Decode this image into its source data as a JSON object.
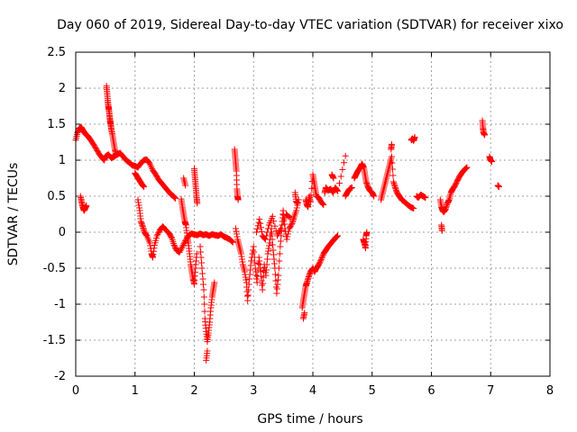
{
  "chart_data": {
    "type": "scatter",
    "title": "Day 060 of 2019, Sidereal Day-to-day VTEC variation (SDTVAR) for receiver xixo",
    "xlabel": "GPS time / hours",
    "ylabel": "SDTVAR / TECUs",
    "xlim": [
      0,
      8
    ],
    "ylim": [
      -2,
      2.5
    ],
    "xticks": [
      "0",
      "1",
      "2",
      "3",
      "4",
      "5",
      "6",
      "7",
      "8"
    ],
    "yticks": [
      "2.5",
      "2",
      "1.5",
      "1",
      "0.5",
      "0",
      "-0.5",
      "-1",
      "-1.5",
      "-2"
    ],
    "marker": "+",
    "color": "#ff0000",
    "grid": true,
    "segments": [
      [
        [
          0.0,
          1.28
        ],
        [
          0.03,
          1.38
        ],
        [
          0.06,
          1.44
        ],
        [
          0.09,
          1.46
        ],
        [
          0.12,
          1.42
        ],
        [
          0.15,
          1.38
        ],
        [
          0.18,
          1.35
        ],
        [
          0.21,
          1.33
        ],
        [
          0.25,
          1.28
        ],
        [
          0.3,
          1.22
        ],
        [
          0.35,
          1.15
        ],
        [
          0.4,
          1.08
        ],
        [
          0.45,
          1.03
        ],
        [
          0.48,
          1.0
        ],
        [
          0.5,
          1.05
        ],
        [
          0.55,
          1.08
        ],
        [
          0.6,
          1.03
        ],
        [
          0.65,
          1.05
        ],
        [
          0.7,
          1.08
        ],
        [
          0.75,
          1.1
        ],
        [
          0.8,
          1.05
        ],
        [
          0.85,
          1.0
        ],
        [
          0.9,
          0.97
        ],
        [
          0.95,
          0.93
        ],
        [
          1.0,
          0.92
        ],
        [
          1.05,
          0.9
        ],
        [
          1.1,
          0.96
        ],
        [
          1.15,
          1.0
        ],
        [
          1.2,
          1.01
        ],
        [
          1.25,
          0.95
        ],
        [
          1.3,
          0.86
        ],
        [
          1.35,
          0.8
        ],
        [
          1.4,
          0.73
        ],
        [
          1.45,
          0.68
        ],
        [
          1.5,
          0.63
        ],
        [
          1.55,
          0.58
        ],
        [
          1.6,
          0.53
        ],
        [
          1.65,
          0.5
        ],
        [
          1.68,
          0.47
        ]
      ],
      [
        [
          0.52,
          2.03
        ],
        [
          0.53,
          1.93
        ],
        [
          0.54,
          1.83
        ],
        [
          0.55,
          1.75
        ],
        [
          0.56,
          1.7
        ],
        [
          0.57,
          1.62
        ],
        [
          0.58,
          1.55
        ],
        [
          0.59,
          1.5
        ],
        [
          0.6,
          1.43
        ],
        [
          0.62,
          1.35
        ],
        [
          0.64,
          1.25
        ],
        [
          0.66,
          1.15
        ],
        [
          0.68,
          1.08
        ]
      ],
      [
        [
          1.0,
          0.82
        ],
        [
          1.03,
          0.78
        ],
        [
          1.06,
          0.74
        ],
        [
          1.09,
          0.7
        ],
        [
          1.12,
          0.66
        ],
        [
          1.15,
          0.63
        ]
      ],
      [
        [
          0.08,
          0.5
        ],
        [
          0.1,
          0.42
        ],
        [
          0.12,
          0.35
        ],
        [
          0.14,
          0.3
        ],
        [
          0.16,
          0.33
        ],
        [
          0.18,
          0.37
        ]
      ],
      [
        [
          1.05,
          0.45
        ],
        [
          1.08,
          0.3
        ],
        [
          1.1,
          0.15
        ],
        [
          1.13,
          0.08
        ],
        [
          1.16,
          0.0
        ],
        [
          1.2,
          -0.05
        ],
        [
          1.25,
          -0.15
        ],
        [
          1.28,
          -0.3
        ],
        [
          1.3,
          -0.35
        ],
        [
          1.33,
          -0.18
        ],
        [
          1.37,
          -0.05
        ],
        [
          1.42,
          0.03
        ],
        [
          1.47,
          0.08
        ],
        [
          1.52,
          0.03
        ],
        [
          1.58,
          -0.02
        ],
        [
          1.62,
          -0.08
        ],
        [
          1.66,
          -0.18
        ],
        [
          1.7,
          -0.25
        ],
        [
          1.75,
          -0.28
        ],
        [
          1.8,
          -0.2
        ],
        [
          1.85,
          -0.12
        ],
        [
          1.9,
          -0.05
        ],
        [
          1.95,
          -0.02
        ],
        [
          2.0,
          -0.03
        ],
        [
          2.05,
          -0.04
        ],
        [
          2.1,
          -0.02
        ],
        [
          2.15,
          -0.04
        ],
        [
          2.2,
          -0.03
        ],
        [
          2.25,
          -0.05
        ],
        [
          2.3,
          -0.03
        ],
        [
          2.35,
          -0.04
        ],
        [
          2.4,
          -0.05
        ],
        [
          2.45,
          -0.03
        ],
        [
          2.5,
          -0.06
        ],
        [
          2.55,
          -0.08
        ],
        [
          2.6,
          -0.1
        ],
        [
          2.65,
          -0.14
        ]
      ],
      [
        [
          1.78,
          0.46
        ],
        [
          1.8,
          0.35
        ],
        [
          1.82,
          0.25
        ],
        [
          1.84,
          0.15
        ],
        [
          1.86,
          0.1
        ],
        [
          1.88,
          -0.05
        ],
        [
          1.9,
          -0.15
        ],
        [
          1.92,
          -0.3
        ],
        [
          1.94,
          -0.45
        ],
        [
          1.96,
          -0.55
        ],
        [
          1.98,
          -0.65
        ],
        [
          2.0,
          -0.72
        ],
        [
          2.02,
          -0.5
        ],
        [
          2.04,
          -0.3
        ]
      ],
      [
        [
          1.82,
          0.75
        ],
        [
          1.85,
          0.65
        ]
      ],
      [
        [
          2.0,
          0.88
        ],
        [
          2.01,
          0.78
        ],
        [
          2.02,
          0.68
        ],
        [
          2.03,
          0.58
        ],
        [
          2.04,
          0.48
        ],
        [
          2.05,
          0.4
        ]
      ],
      [
        [
          2.1,
          -0.2
        ],
        [
          2.13,
          -0.5
        ],
        [
          2.16,
          -0.8
        ],
        [
          2.18,
          -1.2
        ],
        [
          2.2,
          -1.38
        ],
        [
          2.22,
          -1.52
        ],
        [
          2.24,
          -1.4
        ],
        [
          2.26,
          -1.25
        ],
        [
          2.28,
          -1.05
        ],
        [
          2.3,
          -0.9
        ],
        [
          2.32,
          -0.8
        ],
        [
          2.34,
          -0.7
        ]
      ],
      [
        [
          2.2,
          -1.78
        ],
        [
          2.22,
          -1.65
        ]
      ],
      [
        [
          2.68,
          1.15
        ],
        [
          2.69,
          1.05
        ],
        [
          2.7,
          0.95
        ],
        [
          2.71,
          0.85
        ],
        [
          2.72,
          0.6
        ],
        [
          2.73,
          0.5
        ],
        [
          2.74,
          0.45
        ]
      ],
      [
        [
          2.7,
          0.05
        ],
        [
          2.73,
          -0.1
        ],
        [
          2.76,
          -0.2
        ],
        [
          2.79,
          -0.3
        ],
        [
          2.82,
          -0.45
        ],
        [
          2.85,
          -0.55
        ],
        [
          2.88,
          -0.7
        ],
        [
          2.9,
          -0.95
        ],
        [
          2.93,
          -0.65
        ],
        [
          2.96,
          -0.4
        ],
        [
          3.0,
          -0.2
        ],
        [
          3.03,
          -0.5
        ],
        [
          3.06,
          -0.7
        ],
        [
          3.09,
          -0.35
        ],
        [
          3.12,
          -0.55
        ],
        [
          3.15,
          -0.8
        ],
        [
          3.18,
          -0.45
        ],
        [
          3.21,
          -0.6
        ],
        [
          3.24,
          -0.3
        ],
        [
          3.27,
          -0.15
        ],
        [
          3.3,
          0.05
        ],
        [
          3.33,
          -0.25
        ],
        [
          3.36,
          -0.5
        ],
        [
          3.39,
          -0.85
        ],
        [
          3.42,
          -0.6
        ],
        [
          3.45,
          -0.2
        ],
        [
          3.48,
          0.1
        ],
        [
          3.5,
          0.3
        ],
        [
          3.53,
          0.05
        ],
        [
          3.56,
          -0.1
        ],
        [
          3.6,
          0.05
        ],
        [
          3.65,
          0.12
        ],
        [
          3.68,
          0.2
        ],
        [
          3.72,
          0.3
        ],
        [
          3.76,
          0.45
        ]
      ],
      [
        [
          3.05,
          0.0
        ],
        [
          3.1,
          0.18
        ],
        [
          3.15,
          -0.05
        ],
        [
          3.2,
          -0.1
        ],
        [
          3.26,
          0.1
        ],
        [
          3.32,
          0.22
        ],
        [
          3.4,
          -0.05
        ],
        [
          3.46,
          0.05
        ],
        [
          3.55,
          0.25
        ],
        [
          3.62,
          0.2
        ]
      ],
      [
        [
          3.7,
          0.55
        ],
        [
          3.72,
          0.43
        ],
        [
          3.74,
          0.4
        ]
      ],
      [
        [
          3.82,
          -1.05
        ],
        [
          3.84,
          -0.95
        ],
        [
          3.86,
          -0.85
        ],
        [
          3.88,
          -0.75
        ],
        [
          3.9,
          -0.7
        ],
        [
          3.93,
          -0.62
        ],
        [
          3.96,
          -0.55
        ],
        [
          4.0,
          -0.5
        ],
        [
          4.03,
          -0.55
        ],
        [
          4.06,
          -0.5
        ],
        [
          4.1,
          -0.45
        ],
        [
          4.14,
          -0.38
        ],
        [
          4.18,
          -0.3
        ],
        [
          4.22,
          -0.25
        ],
        [
          4.26,
          -0.2
        ],
        [
          4.3,
          -0.16
        ],
        [
          4.34,
          -0.12
        ],
        [
          4.38,
          -0.08
        ],
        [
          4.42,
          -0.05
        ]
      ],
      [
        [
          3.84,
          -1.2
        ],
        [
          3.86,
          -1.12
        ]
      ],
      [
        [
          3.88,
          0.45
        ],
        [
          3.9,
          0.38
        ],
        [
          3.92,
          0.35
        ],
        [
          3.94,
          0.5
        ],
        [
          3.96,
          0.42
        ],
        [
          4.0,
          0.8
        ],
        [
          4.02,
          0.7
        ],
        [
          4.04,
          0.6
        ],
        [
          4.06,
          0.5
        ],
        [
          4.1,
          0.48
        ],
        [
          4.14,
          0.42
        ],
        [
          4.18,
          0.38
        ]
      ],
      [
        [
          4.2,
          0.55
        ],
        [
          4.22,
          0.62
        ],
        [
          4.26,
          0.58
        ],
        [
          4.3,
          0.6
        ],
        [
          4.34,
          0.55
        ],
        [
          4.38,
          0.62
        ],
        [
          4.42,
          0.57
        ]
      ],
      [
        [
          4.32,
          0.8
        ],
        [
          4.35,
          0.75
        ]
      ],
      [
        [
          4.45,
          0.68
        ],
        [
          4.55,
          1.06
        ]
      ],
      [
        [
          4.55,
          0.5
        ],
        [
          4.58,
          0.55
        ],
        [
          4.62,
          0.6
        ],
        [
          4.66,
          0.62
        ]
      ],
      [
        [
          4.7,
          0.75
        ],
        [
          4.73,
          0.8
        ],
        [
          4.76,
          0.85
        ],
        [
          4.8,
          0.9
        ],
        [
          4.83,
          0.95
        ],
        [
          4.86,
          0.9
        ],
        [
          4.88,
          0.8
        ],
        [
          4.9,
          0.7
        ],
        [
          4.93,
          0.63
        ],
        [
          4.96,
          0.58
        ],
        [
          5.0,
          0.55
        ],
        [
          5.03,
          0.5
        ]
      ],
      [
        [
          4.85,
          -0.1
        ],
        [
          4.87,
          -0.15
        ],
        [
          4.89,
          -0.22
        ],
        [
          4.9,
          -0.05
        ],
        [
          4.91,
          0.0
        ]
      ],
      [
        [
          5.15,
          0.45
        ],
        [
          5.18,
          0.55
        ],
        [
          5.21,
          0.65
        ],
        [
          5.24,
          0.75
        ],
        [
          5.27,
          0.85
        ],
        [
          5.3,
          0.95
        ],
        [
          5.33,
          1.05
        ],
        [
          5.36,
          0.7
        ],
        [
          5.39,
          0.62
        ],
        [
          5.42,
          0.55
        ],
        [
          5.46,
          0.5
        ],
        [
          5.5,
          0.45
        ],
        [
          5.55,
          0.42
        ],
        [
          5.6,
          0.38
        ],
        [
          5.65,
          0.35
        ],
        [
          5.7,
          0.33
        ]
      ],
      [
        [
          5.32,
          1.15
        ],
        [
          5.33,
          1.22
        ]
      ],
      [
        [
          5.66,
          1.28
        ],
        [
          5.68,
          1.3
        ],
        [
          5.7,
          1.27
        ],
        [
          5.72,
          1.32
        ]
      ],
      [
        [
          5.75,
          0.5
        ],
        [
          5.78,
          0.48
        ],
        [
          5.82,
          0.52
        ],
        [
          5.86,
          0.5
        ],
        [
          5.9,
          0.48
        ]
      ],
      [
        [
          6.15,
          0.45
        ],
        [
          6.17,
          0.35
        ],
        [
          6.19,
          0.3
        ],
        [
          6.21,
          0.28
        ],
        [
          6.24,
          0.32
        ],
        [
          6.27,
          0.4
        ],
        [
          6.3,
          0.45
        ],
        [
          6.33,
          0.55
        ],
        [
          6.36,
          0.6
        ],
        [
          6.4,
          0.65
        ],
        [
          6.44,
          0.72
        ],
        [
          6.48,
          0.78
        ],
        [
          6.52,
          0.83
        ],
        [
          6.56,
          0.87
        ],
        [
          6.6,
          0.9
        ]
      ],
      [
        [
          6.17,
          0.1
        ],
        [
          6.18,
          0.02
        ]
      ],
      [
        [
          6.86,
          1.55
        ],
        [
          6.87,
          1.45
        ],
        [
          6.88,
          1.38
        ],
        [
          6.9,
          1.35
        ]
      ],
      [
        [
          6.98,
          1.05
        ],
        [
          7.0,
          1.0
        ],
        [
          7.02,
          0.98
        ]
      ],
      [
        [
          7.12,
          0.65
        ],
        [
          7.14,
          0.63
        ]
      ]
    ]
  }
}
